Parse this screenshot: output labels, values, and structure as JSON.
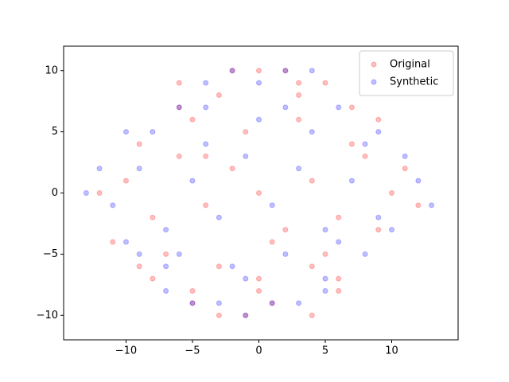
{
  "chart_data": {
    "type": "scatter",
    "xlim": [
      -14.7,
      15.0
    ],
    "xticks": [
      {
        "value": -10,
        "label": "−10"
      },
      {
        "value": -5,
        "label": "−5"
      },
      0,
      5,
      10
    ],
    "ylim": [
      -12,
      12
    ],
    "yticks": [
      {
        "value": -10,
        "label": "−10"
      },
      {
        "value": -5,
        "label": "−5"
      },
      0,
      5,
      10
    ],
    "grid": false,
    "legend": "upper right",
    "alpha": 0.25,
    "series": [
      {
        "name": "Original",
        "color": "#ff0000",
        "x": [
          -12,
          -10,
          -8,
          -6,
          -4,
          -2,
          0,
          2,
          4,
          6,
          8,
          10,
          12,
          -11,
          -9,
          -7,
          -5,
          -3,
          -1,
          1,
          3,
          5,
          7,
          9,
          11,
          -9,
          -6,
          -3,
          0,
          3,
          6,
          9,
          -8,
          -5,
          -2,
          1,
          4,
          7,
          -6,
          -3,
          0,
          3,
          6,
          -5,
          -1,
          2,
          5,
          -4,
          0,
          4
        ],
        "values": [
          0,
          1,
          -2,
          3,
          -1,
          2,
          0,
          -3,
          1,
          -2,
          3,
          0,
          -1,
          -4,
          4,
          -5,
          6,
          -6,
          5,
          -4,
          6,
          -5,
          4,
          -3,
          2,
          -6,
          7,
          8,
          -8,
          8,
          -7,
          6,
          -7,
          -8,
          10,
          -9,
          -10,
          7,
          9,
          -10,
          10,
          9,
          -8,
          -9,
          -10,
          10,
          9,
          3,
          -7,
          -6
        ]
      },
      {
        "name": "Synthetic",
        "color": "#0000ff",
        "x": [
          -13,
          -11,
          -9,
          -7,
          -5,
          -3,
          -1,
          1,
          3,
          5,
          7,
          9,
          11,
          13,
          -12,
          -10,
          -8,
          -6,
          -4,
          -2,
          0,
          2,
          4,
          6,
          8,
          10,
          12,
          -10,
          -7,
          -4,
          -1,
          2,
          5,
          8,
          -9,
          -6,
          -3,
          0,
          3,
          6,
          9,
          -7,
          -4,
          -1,
          2,
          5,
          -5,
          -2,
          1,
          4
        ],
        "values": [
          0,
          -1,
          2,
          -3,
          1,
          -2,
          3,
          -1,
          2,
          -3,
          1,
          -2,
          3,
          -1,
          2,
          -4,
          5,
          -5,
          4,
          -6,
          6,
          -5,
          5,
          -4,
          4,
          -3,
          1,
          5,
          -6,
          7,
          -7,
          7,
          -7,
          -5,
          -5,
          7,
          -9,
          9,
          -9,
          7,
          5,
          -8,
          9,
          -10,
          10,
          -8,
          -9,
          10,
          -9,
          10
        ]
      }
    ]
  }
}
